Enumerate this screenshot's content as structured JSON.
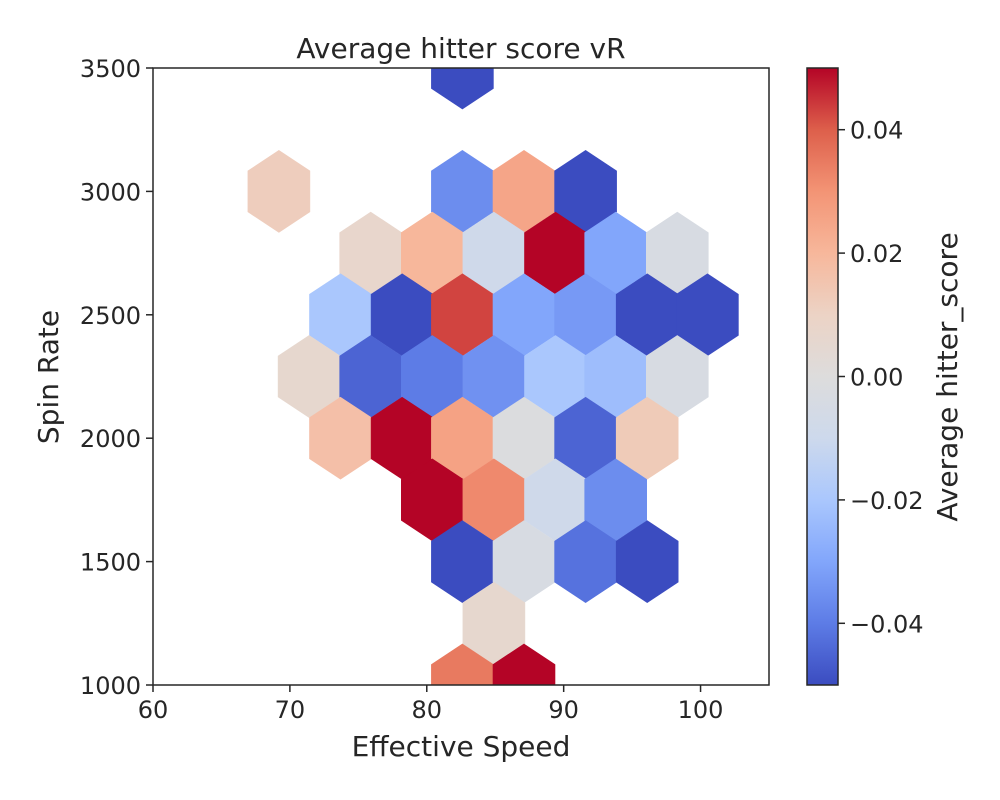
{
  "chart_data": {
    "type": "heatmap",
    "title": "Average hitter score vR",
    "xlabel": "Effective Speed",
    "ylabel": "Spin Rate",
    "xlim": [
      60,
      105
    ],
    "ylim": [
      1000,
      3500
    ],
    "x_ticks": [
      60,
      70,
      80,
      90,
      100
    ],
    "y_ticks": [
      1000,
      1500,
      2000,
      2500,
      3000,
      3500
    ],
    "grid": false,
    "colorbar": {
      "label": "Average hitter_score",
      "range": [
        -0.05,
        0.05
      ],
      "ticks": [
        -0.04,
        -0.02,
        0.0,
        0.02,
        0.04
      ],
      "tick_labels": [
        "−0.04",
        "−0.02",
        "0.00",
        "0.02",
        "0.04"
      ],
      "colormap": "coolwarm",
      "color_stops": [
        "#3b4cc0",
        "#5d7ce6",
        "#82a6fb",
        "#aac7fd",
        "#cdd9ec",
        "#dddcdc",
        "#ecd3c5",
        "#f7b79b",
        "#f39475",
        "#dd5f4b",
        "#b40426"
      ]
    },
    "cells": [
      {
        "x": 82.6,
        "y": 3500,
        "value": -0.05
      },
      {
        "x": 69.2,
        "y": 3000,
        "value": 0.012
      },
      {
        "x": 82.6,
        "y": 3000,
        "value": -0.036
      },
      {
        "x": 87.1,
        "y": 3000,
        "value": 0.025
      },
      {
        "x": 91.6,
        "y": 3000,
        "value": -0.05
      },
      {
        "x": 75.9,
        "y": 2750,
        "value": 0.007
      },
      {
        "x": 80.4,
        "y": 2750,
        "value": 0.02
      },
      {
        "x": 84.9,
        "y": 2750,
        "value": -0.009
      },
      {
        "x": 89.4,
        "y": 2750,
        "value": 0.05
      },
      {
        "x": 93.8,
        "y": 2750,
        "value": -0.03
      },
      {
        "x": 98.3,
        "y": 2750,
        "value": -0.004
      },
      {
        "x": 73.7,
        "y": 2500,
        "value": -0.02
      },
      {
        "x": 78.2,
        "y": 2500,
        "value": -0.05
      },
      {
        "x": 82.6,
        "y": 2500,
        "value": 0.043
      },
      {
        "x": 87.1,
        "y": 2500,
        "value": -0.03
      },
      {
        "x": 91.6,
        "y": 2500,
        "value": -0.033
      },
      {
        "x": 96.1,
        "y": 2500,
        "value": -0.05
      },
      {
        "x": 100.5,
        "y": 2500,
        "value": -0.05
      },
      {
        "x": 71.4,
        "y": 2250,
        "value": 0.006
      },
      {
        "x": 75.9,
        "y": 2250,
        "value": -0.045
      },
      {
        "x": 80.4,
        "y": 2250,
        "value": -0.04
      },
      {
        "x": 84.9,
        "y": 2250,
        "value": -0.035
      },
      {
        "x": 89.4,
        "y": 2250,
        "value": -0.02
      },
      {
        "x": 93.8,
        "y": 2250,
        "value": -0.023
      },
      {
        "x": 98.3,
        "y": 2250,
        "value": -0.004
      },
      {
        "x": 73.7,
        "y": 2000,
        "value": 0.017
      },
      {
        "x": 78.2,
        "y": 2000,
        "value": 0.05
      },
      {
        "x": 82.6,
        "y": 2000,
        "value": 0.026
      },
      {
        "x": 87.1,
        "y": 2000,
        "value": -0.001
      },
      {
        "x": 91.6,
        "y": 2000,
        "value": -0.045
      },
      {
        "x": 96.1,
        "y": 2000,
        "value": 0.013
      },
      {
        "x": 80.4,
        "y": 1750,
        "value": 0.05
      },
      {
        "x": 84.9,
        "y": 1750,
        "value": 0.032
      },
      {
        "x": 89.4,
        "y": 1750,
        "value": -0.009
      },
      {
        "x": 93.8,
        "y": 1750,
        "value": -0.036
      },
      {
        "x": 82.6,
        "y": 1500,
        "value": -0.05
      },
      {
        "x": 87.1,
        "y": 1500,
        "value": -0.004
      },
      {
        "x": 91.6,
        "y": 1500,
        "value": -0.042
      },
      {
        "x": 96.1,
        "y": 1500,
        "value": -0.05
      },
      {
        "x": 84.9,
        "y": 1250,
        "value": 0.006
      },
      {
        "x": 82.6,
        "y": 1000,
        "value": 0.035
      },
      {
        "x": 87.1,
        "y": 1000,
        "value": 0.05
      }
    ]
  }
}
